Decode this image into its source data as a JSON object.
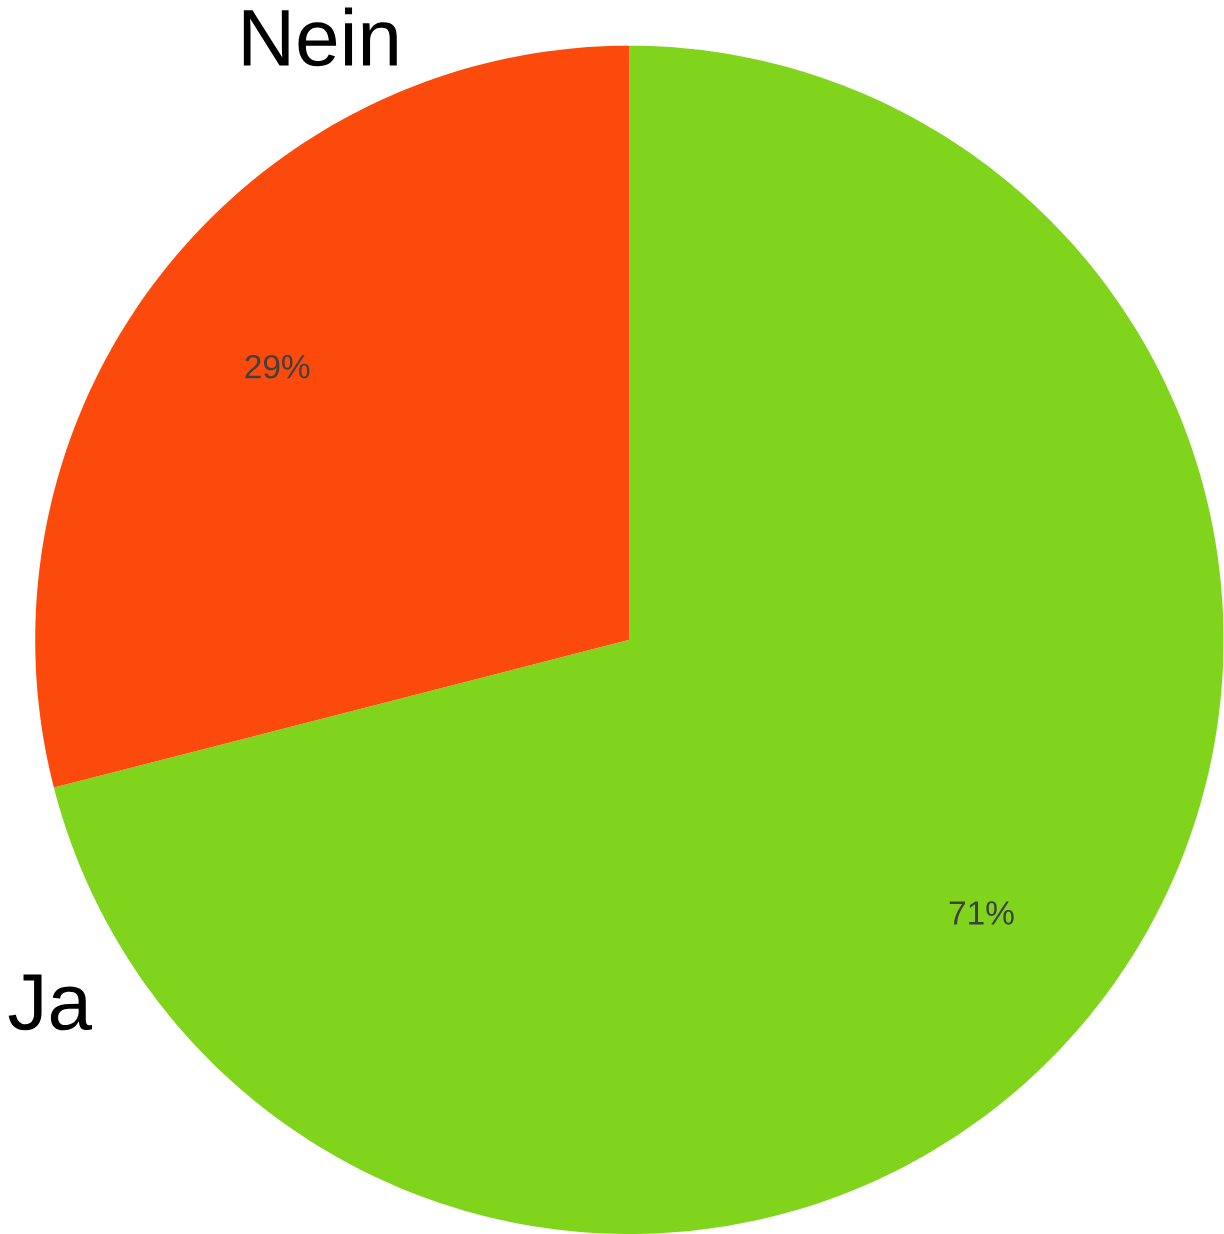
{
  "chart_data": {
    "type": "pie",
    "categories": [
      "Ja",
      "Nein"
    ],
    "values": [
      71,
      29
    ],
    "value_labels": [
      "71%",
      "29%"
    ],
    "colors": [
      "#80d41c",
      "#fc4a0c"
    ]
  }
}
